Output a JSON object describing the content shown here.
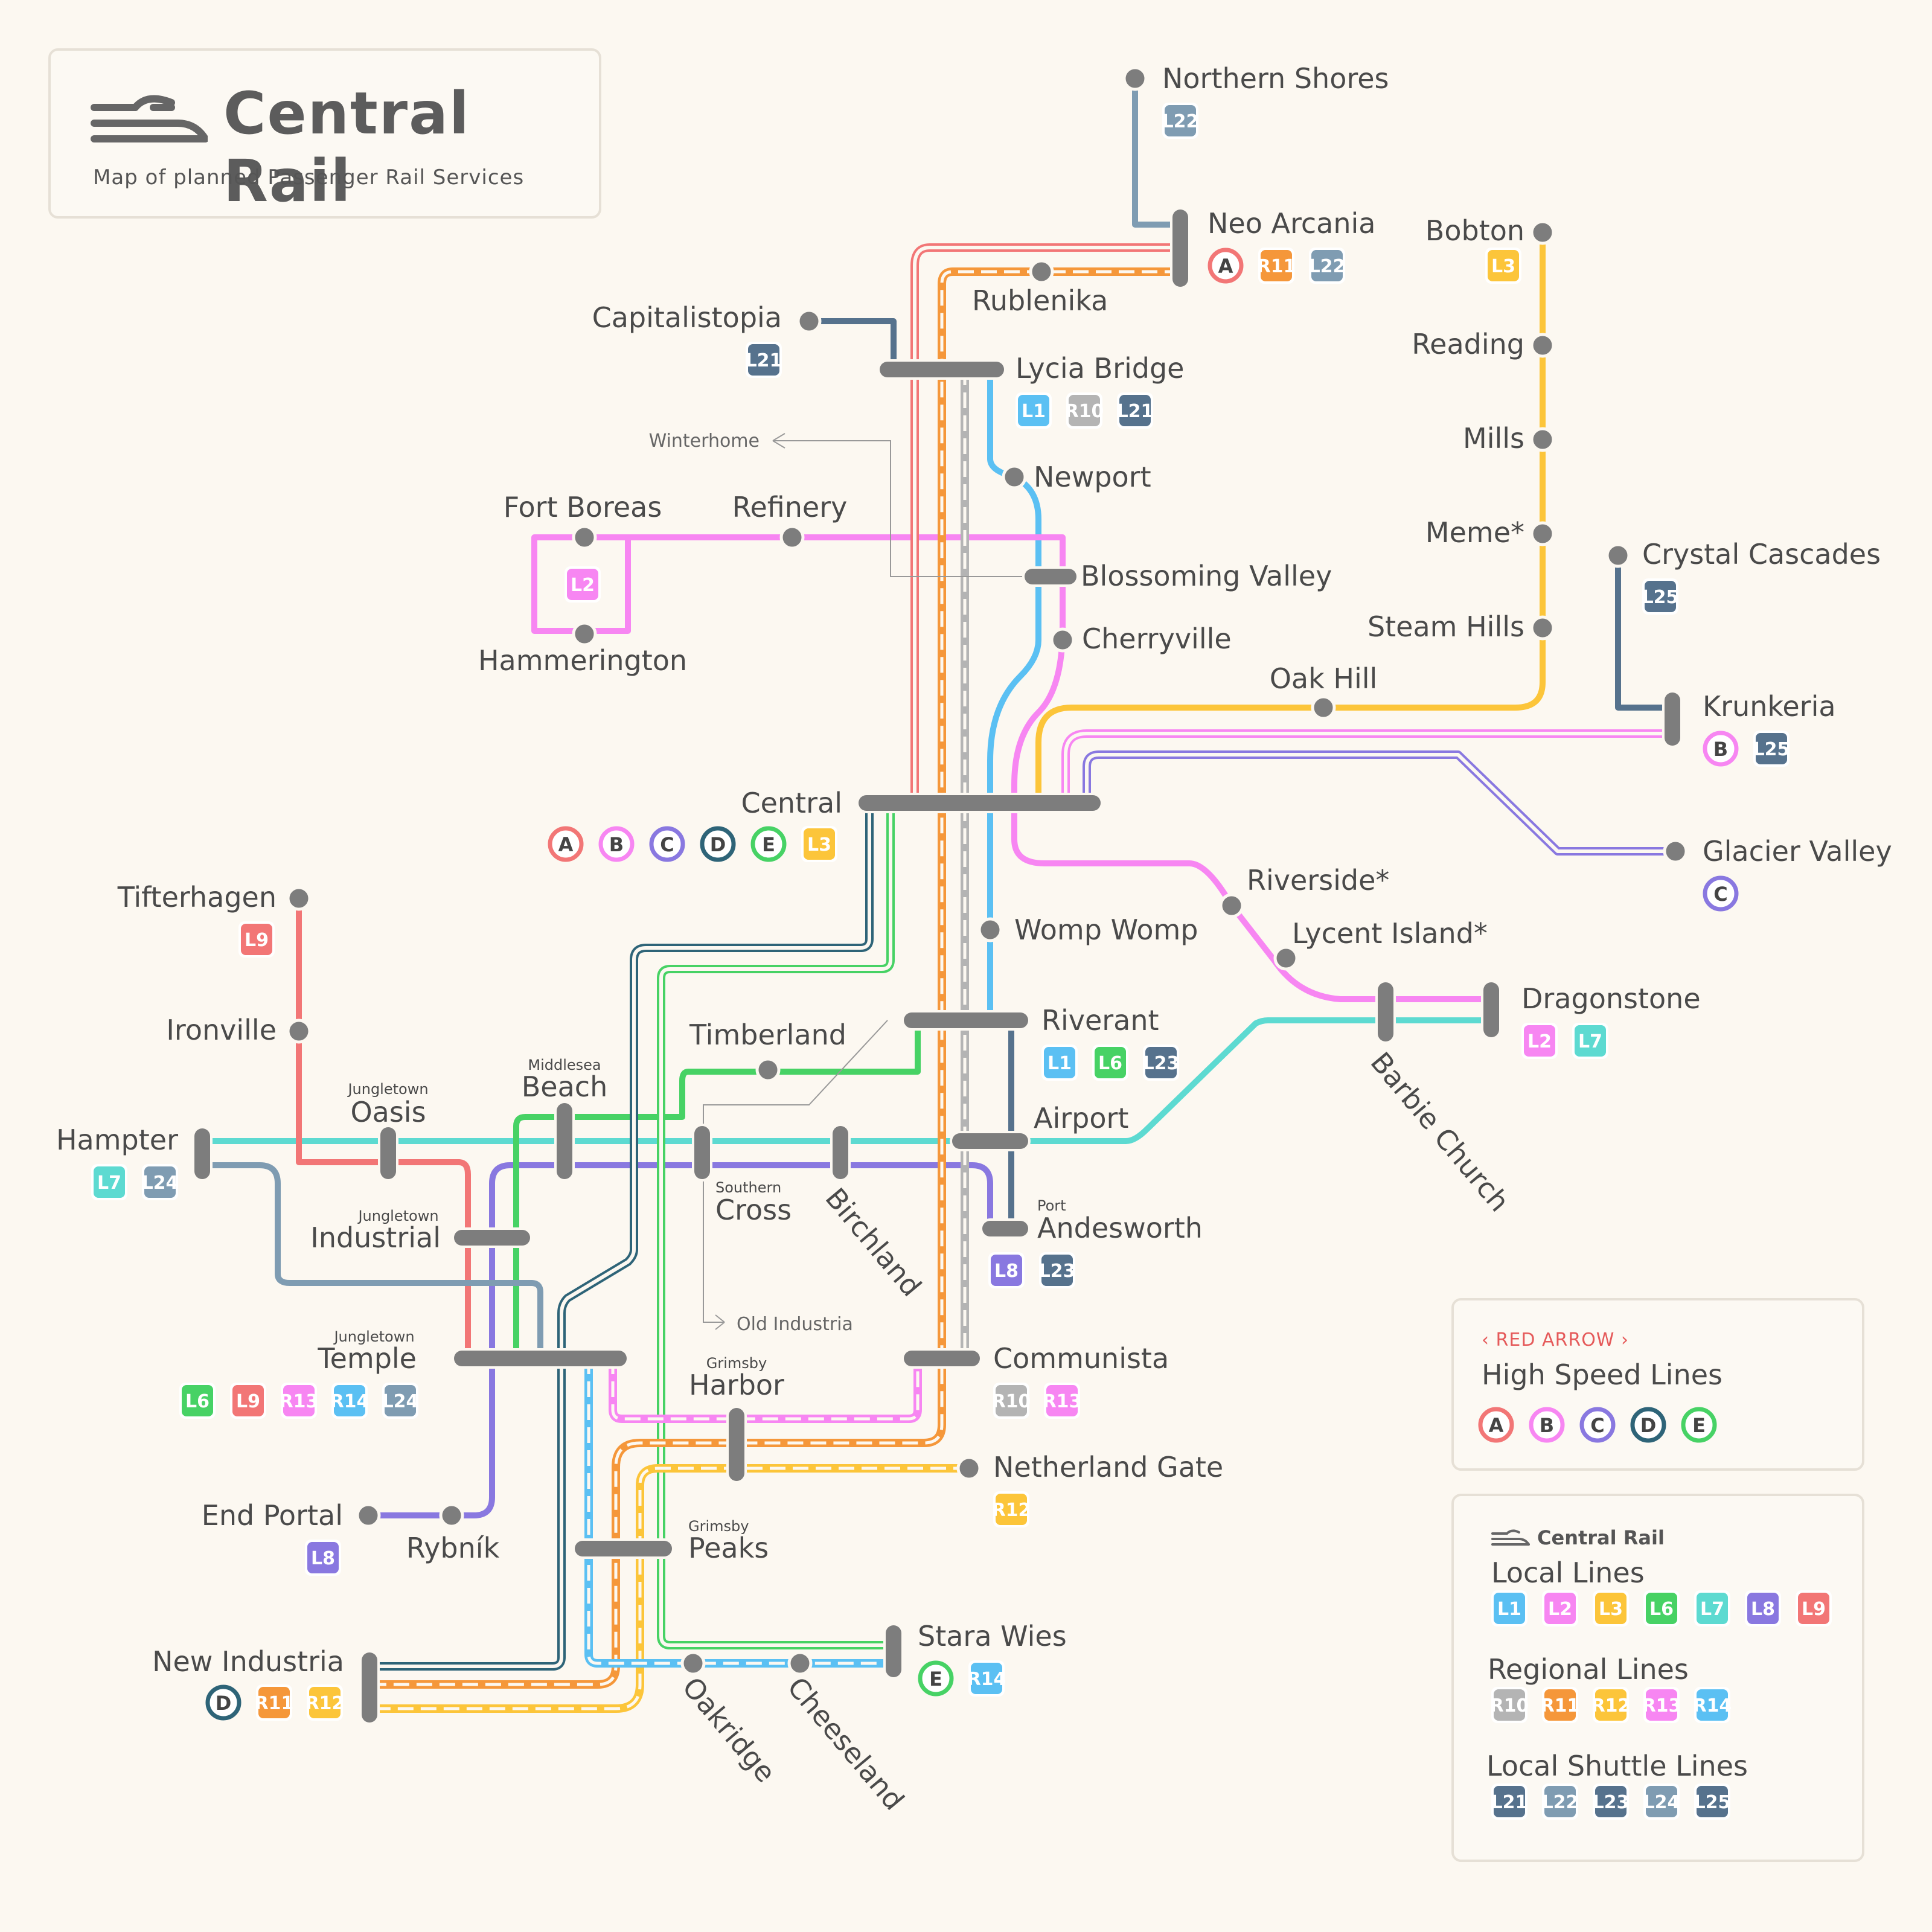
{
  "title_card": {
    "title": "Central Rail",
    "subtitle": "Map of planned Passenger Rail Services"
  },
  "colors": {
    "L1": "#5bc0f3",
    "L2": "#f786f2",
    "L3": "#fcc53a",
    "L6": "#47d265",
    "L7": "#5ddad1",
    "L8": "#8978e0",
    "L9": "#f27676",
    "R10": "#b4b4b4",
    "R11": "#f5973a",
    "R12": "#fcc53a",
    "R13": "#f786f2",
    "R14": "#5bc0f3",
    "L21": "#56728d",
    "L22": "#7f9cb2",
    "L23": "#56728d",
    "L24": "#7f9cb2",
    "L25": "#56728d",
    "A": "#f27676",
    "B": "#f786f2",
    "C": "#8978e0",
    "D": "#2e6478",
    "E": "#47d265",
    "station": "#7d7d7d"
  },
  "stations": [
    {
      "name": "Northern Shores",
      "lines": [
        "L22"
      ]
    },
    {
      "name": "Neo Arcania",
      "lines": [
        "A",
        "R11",
        "L22"
      ]
    },
    {
      "name": "Rublenika",
      "lines": []
    },
    {
      "name": "Bobton",
      "lines": [
        "L3"
      ]
    },
    {
      "name": "Capitalistopia",
      "lines": [
        "L21"
      ]
    },
    {
      "name": "Lycia Bridge",
      "lines": [
        "L1",
        "R10",
        "L21"
      ]
    },
    {
      "name": "Reading",
      "lines": []
    },
    {
      "name": "Winterhome",
      "lines": []
    },
    {
      "name": "Mills",
      "lines": []
    },
    {
      "name": "Newport",
      "lines": []
    },
    {
      "name": "Fort Boreas",
      "lines": []
    },
    {
      "name": "Refinery",
      "lines": []
    },
    {
      "name": "Meme*",
      "lines": []
    },
    {
      "name": "Crystal Cascades",
      "lines": [
        "L25"
      ]
    },
    {
      "name": "Blossoming Valley",
      "lines": []
    },
    {
      "name": "Hammerington",
      "lines": [
        "L2"
      ]
    },
    {
      "name": "Cherryville",
      "lines": []
    },
    {
      "name": "Steam Hills",
      "lines": []
    },
    {
      "name": "Oak Hill",
      "lines": []
    },
    {
      "name": "Krunkeria",
      "lines": [
        "B",
        "L25"
      ]
    },
    {
      "name": "Central",
      "lines": [
        "A",
        "B",
        "C",
        "D",
        "E",
        "L3"
      ]
    },
    {
      "name": "Glacier Valley",
      "lines": [
        "C"
      ]
    },
    {
      "name": "Riverside*",
      "lines": []
    },
    {
      "name": "Tifterhagen",
      "lines": [
        "L9"
      ]
    },
    {
      "name": "Womp Womp",
      "lines": []
    },
    {
      "name": "Lycent Island*",
      "lines": []
    },
    {
      "name": "Dragonstone",
      "lines": [
        "L2",
        "L7"
      ]
    },
    {
      "name": "Riverant",
      "lines": [
        "L1",
        "L6",
        "L23"
      ]
    },
    {
      "name": "Ironville",
      "lines": []
    },
    {
      "name": "Timberland",
      "lines": []
    },
    {
      "name": "Barbie Church",
      "lines": []
    },
    {
      "name": "Beach",
      "prefix": "Middlesea",
      "lines": []
    },
    {
      "name": "Oasis",
      "prefix": "Jungletown",
      "lines": []
    },
    {
      "name": "Airport",
      "lines": []
    },
    {
      "name": "Hampter",
      "lines": [
        "L7",
        "L24"
      ]
    },
    {
      "name": "Cross",
      "prefix": "Southern",
      "lines": []
    },
    {
      "name": "Birchland",
      "lines": []
    },
    {
      "name": "Andesworth",
      "prefix": "Port",
      "lines": [
        "L8",
        "L23"
      ]
    },
    {
      "name": "Industrial",
      "prefix": "Jungletown",
      "lines": []
    },
    {
      "name": "Old Industria",
      "lines": []
    },
    {
      "name": "Temple",
      "prefix": "Jungletown",
      "lines": [
        "L6",
        "L9",
        "R13",
        "R14",
        "L24"
      ]
    },
    {
      "name": "Communista",
      "lines": [
        "R10",
        "R13"
      ]
    },
    {
      "name": "Harbor",
      "prefix": "Grimsby",
      "lines": []
    },
    {
      "name": "Netherland Gate",
      "lines": [
        "R12"
      ]
    },
    {
      "name": "End Portal",
      "lines": [
        "L8"
      ]
    },
    {
      "name": "Rybník",
      "lines": []
    },
    {
      "name": "Peaks",
      "prefix": "Grimsby",
      "lines": []
    },
    {
      "name": "Stara Wies",
      "lines": [
        "E",
        "R14"
      ]
    },
    {
      "name": "New Industria",
      "lines": [
        "D",
        "R11",
        "R12"
      ]
    },
    {
      "name": "Oakridge",
      "lines": []
    },
    {
      "name": "Cheeseland",
      "lines": []
    }
  ],
  "legend_high_speed": {
    "heading": "RED ARROW",
    "title": "High Speed Lines",
    "lines": [
      "A",
      "B",
      "C",
      "D",
      "E"
    ]
  },
  "legend_central": {
    "brand": "Central Rail",
    "groups": [
      {
        "title": "Local Lines",
        "lines": [
          "L1",
          "L2",
          "L3",
          "L6",
          "L7",
          "L8",
          "L9"
        ]
      },
      {
        "title": "Regional Lines",
        "lines": [
          "R10",
          "R11",
          "R12",
          "R13",
          "R14"
        ]
      },
      {
        "title": "Local Shuttle Lines",
        "lines": [
          "L21",
          "L22",
          "L23",
          "L24",
          "L25"
        ]
      }
    ]
  }
}
